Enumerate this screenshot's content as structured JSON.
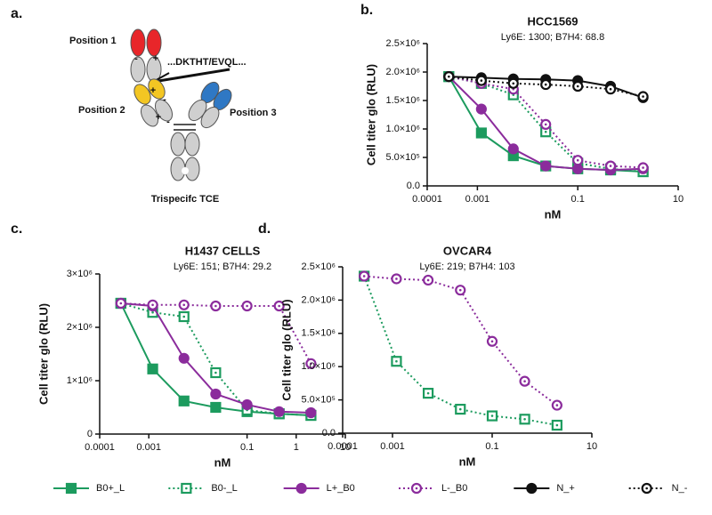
{
  "diagram": {
    "label": "a.",
    "texts": [
      "Position 1",
      "...DKTHT/EVQL...",
      "Position 2",
      "Position 3",
      "Trispecifc TCE"
    ],
    "signs": [
      "-",
      "+",
      "+",
      "-",
      "+",
      "-"
    ]
  },
  "chart_data": [
    {
      "type": "line",
      "panel_label": "b.",
      "title": "HCC1569",
      "subtitle": "Ly6E: 1300; B7H4: 68.8",
      "x_label": "nM",
      "y_label": "Cell titer glo (RLU)",
      "log_x": true,
      "x": [
        0.00027,
        0.0012,
        0.0052,
        0.023,
        0.1,
        0.45,
        2
      ],
      "xlim": [
        0.0001,
        10
      ],
      "xticks": [
        0.0001,
        0.001,
        0.1,
        10
      ],
      "ylim": [
        0,
        2500000
      ],
      "yticks": [
        {
          "value": 0,
          "label": "0.0"
        },
        {
          "value": 500000,
          "label": "5.0×10⁵"
        },
        {
          "value": 1000000,
          "label": "1.0×10⁶"
        },
        {
          "value": 1500000,
          "label": "1.5×10⁶"
        },
        {
          "value": 2000000,
          "label": "2.0×10⁶"
        },
        {
          "value": 2500000,
          "label": "2.5×10⁶"
        }
      ],
      "series": [
        {
          "name": "B0+_L",
          "color": "#1c9b5e",
          "marker": "square",
          "filled": true,
          "dotted": false,
          "values": [
            1920000,
            930000,
            530000,
            350000,
            300000,
            280000,
            250000
          ]
        },
        {
          "name": "B0-_L",
          "color": "#1c9b5e",
          "marker": "square",
          "filled": false,
          "dotted": true,
          "values": [
            1920000,
            1800000,
            1600000,
            950000,
            400000,
            300000,
            250000
          ]
        },
        {
          "name": "L+_B0",
          "color": "#8b2c9c",
          "marker": "circle",
          "filled": true,
          "dotted": false,
          "values": [
            1920000,
            1350000,
            650000,
            350000,
            300000,
            280000,
            300000
          ]
        },
        {
          "name": "L-_B0",
          "color": "#8b2c9c",
          "marker": "circle",
          "filled": false,
          "dotted": true,
          "values": [
            1920000,
            1800000,
            1700000,
            1080000,
            450000,
            350000,
            320000
          ]
        },
        {
          "name": "N_+",
          "color": "#111111",
          "marker": "circle",
          "filled": true,
          "dotted": false,
          "values": [
            1920000,
            1900000,
            1880000,
            1870000,
            1850000,
            1750000,
            1550000
          ]
        },
        {
          "name": "N_-",
          "color": "#111111",
          "marker": "circle",
          "filled": false,
          "dotted": true,
          "values": [
            1920000,
            1850000,
            1800000,
            1780000,
            1750000,
            1700000,
            1570000
          ]
        }
      ]
    },
    {
      "type": "line",
      "panel_label": "c.",
      "title": "H1437 CELLS",
      "subtitle": "Ly6E: 151; B7H4: 29.2",
      "x_label": "nM",
      "y_label": "Cell titer glo (RLU)",
      "log_x": true,
      "x": [
        0.00027,
        0.0012,
        0.0052,
        0.023,
        0.1,
        0.45,
        2
      ],
      "xlim": [
        0.0001,
        10
      ],
      "xticks": [
        0.0001,
        0.001,
        0.1,
        1,
        10
      ],
      "ylim": [
        0,
        3000000
      ],
      "yticks": [
        0,
        {
          "value": 1000000,
          "label": "1×10⁶"
        },
        {
          "value": 2000000,
          "label": "2×10⁶"
        },
        {
          "value": 3000000,
          "label": "3×10⁶"
        }
      ],
      "series": [
        {
          "color": "#1c9b5e",
          "marker": "square",
          "filled": true,
          "dotted": false,
          "values": [
            2450000,
            1220000,
            620000,
            500000,
            420000,
            380000,
            350000
          ]
        },
        {
          "color": "#1c9b5e",
          "marker": "square",
          "filled": false,
          "dotted": true,
          "values": [
            2450000,
            2280000,
            2200000,
            1150000,
            450000,
            380000,
            350000
          ]
        },
        {
          "color": "#8b2c9c",
          "marker": "circle",
          "filled": true,
          "dotted": false,
          "values": [
            2450000,
            2400000,
            1420000,
            750000,
            550000,
            420000,
            400000
          ]
        },
        {
          "color": "#8b2c9c",
          "marker": "circle",
          "filled": false,
          "dotted": true,
          "values": [
            2450000,
            2420000,
            2420000,
            2400000,
            2400000,
            2400000,
            1320000
          ]
        }
      ]
    },
    {
      "type": "line",
      "panel_label": "d.",
      "title": "OVCAR4",
      "subtitle": "Ly6E: 219; B7H4: 103",
      "x_label": "nM",
      "y_label": "Cell titer glo (RLU)",
      "log_x": true,
      "x": [
        0.00027,
        0.0012,
        0.0052,
        0.023,
        0.1,
        0.45,
        2
      ],
      "xlim": [
        0.0001,
        10
      ],
      "xticks": [
        0.0001,
        0.001,
        0.1,
        10
      ],
      "ylim": [
        0,
        2500000
      ],
      "yticks": [
        {
          "value": 0,
          "label": "0.0"
        },
        {
          "value": 500000,
          "label": "5.0×10⁵"
        },
        {
          "value": 1000000,
          "label": "1.0×10⁶"
        },
        {
          "value": 1500000,
          "label": "1.5×10⁶"
        },
        {
          "value": 2000000,
          "label": "2.0×10⁶"
        },
        {
          "value": 2500000,
          "label": "2.5×10⁶"
        }
      ],
      "series": [
        {
          "color": "#1c9b5e",
          "marker": "square",
          "filled": false,
          "dotted": true,
          "values": [
            2360000,
            1080000,
            600000,
            360000,
            260000,
            210000,
            120000
          ]
        },
        {
          "color": "#8b2c9c",
          "marker": "circle",
          "filled": false,
          "dotted": true,
          "values": [
            2360000,
            2320000,
            2300000,
            2150000,
            1380000,
            780000,
            420000
          ]
        }
      ]
    }
  ]
}
